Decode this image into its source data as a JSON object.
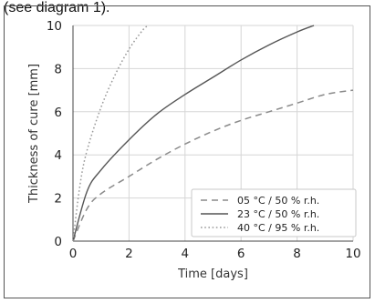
{
  "caption": "(see diagram 1).",
  "chart_data": {
    "type": "line",
    "xlabel": "Time [days]",
    "ylabel": "Thickness of cure [mm]",
    "xlim": [
      0,
      10
    ],
    "ylim": [
      0,
      10
    ],
    "xticks": [
      "0",
      "2",
      "4",
      "6",
      "8",
      "10"
    ],
    "yticks": [
      "0",
      "2",
      "4",
      "6",
      "8",
      "10"
    ],
    "grid": true,
    "legend_position": "bottom-right",
    "series": [
      {
        "name": "05 °C / 50 % r.h.",
        "style": "dashed",
        "color": "#8a8a8a",
        "x": [
          0,
          0.5,
          1,
          2,
          3,
          4,
          5,
          6,
          7,
          8,
          9,
          10
        ],
        "y": [
          0,
          1.5,
          2.2,
          3.0,
          3.8,
          4.5,
          5.1,
          5.6,
          6.0,
          6.4,
          6.8,
          7.0
        ]
      },
      {
        "name": "23 °C / 50 % r.h.",
        "style": "solid",
        "color": "#555555",
        "x": [
          0,
          0.5,
          1,
          2,
          3,
          4,
          5,
          6,
          7,
          8,
          8.6
        ],
        "y": [
          0,
          2.3,
          3.3,
          4.7,
          5.9,
          6.8,
          7.6,
          8.4,
          9.1,
          9.7,
          10.0
        ]
      },
      {
        "name": "40 °C / 95 % r.h.",
        "style": "dotted",
        "color": "#999999",
        "x": [
          0,
          0.25,
          0.5,
          1,
          1.5,
          2,
          2.5,
          2.7
        ],
        "y": [
          0,
          2.6,
          4.2,
          6.2,
          7.7,
          8.9,
          9.8,
          10.0
        ]
      }
    ]
  }
}
